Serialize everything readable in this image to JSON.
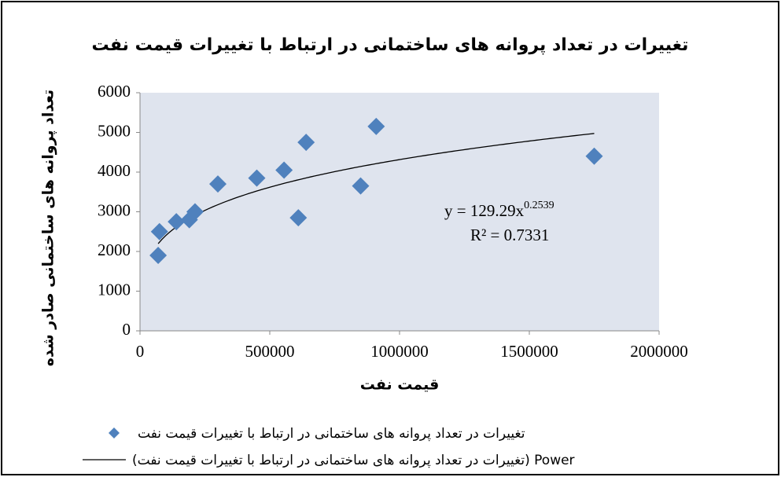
{
  "chart_data": {
    "type": "scatter",
    "title": "تغییرات در تعداد پروانه های ساختمانی در ارتباط با  تغییرات قیمت نفت",
    "x_label": "قیمت نفت",
    "y_label": "تعداد پروانه های ساختمانی صادر شده",
    "series": [
      {
        "name": "تغییرات در تعداد پروانه های ساختمانی در ارتباط با  تغییرات قیمت نفت",
        "color": "#4f81bd",
        "marker": "diamond",
        "x": [
          70000,
          75000,
          140000,
          190000,
          212000,
          300000,
          450000,
          555000,
          640000,
          610000,
          850000,
          910000,
          1750000
        ],
        "values": [
          1900,
          2500,
          2750,
          2800,
          3000,
          3700,
          3850,
          4050,
          4750,
          2850,
          3650,
          5150,
          4400
        ]
      }
    ],
    "trendline": {
      "name": "(تغییرات در تعداد پروانه های ساختمانی در ارتباط با  تغییرات قیمت نفت) Power",
      "kind": "power",
      "equation": "y = 129.29x",
      "exponent": 0.2539,
      "r_squared_label": "R² = 0.7331",
      "color": "#000000"
    },
    "xlim": [
      0,
      2000000
    ],
    "ylim": [
      0,
      6000
    ],
    "xticks": [
      0,
      500000,
      1000000,
      1500000,
      2000000
    ],
    "yticks": [
      0,
      1000,
      2000,
      3000,
      4000,
      5000,
      6000
    ],
    "grid": false,
    "legend": "bottom"
  }
}
